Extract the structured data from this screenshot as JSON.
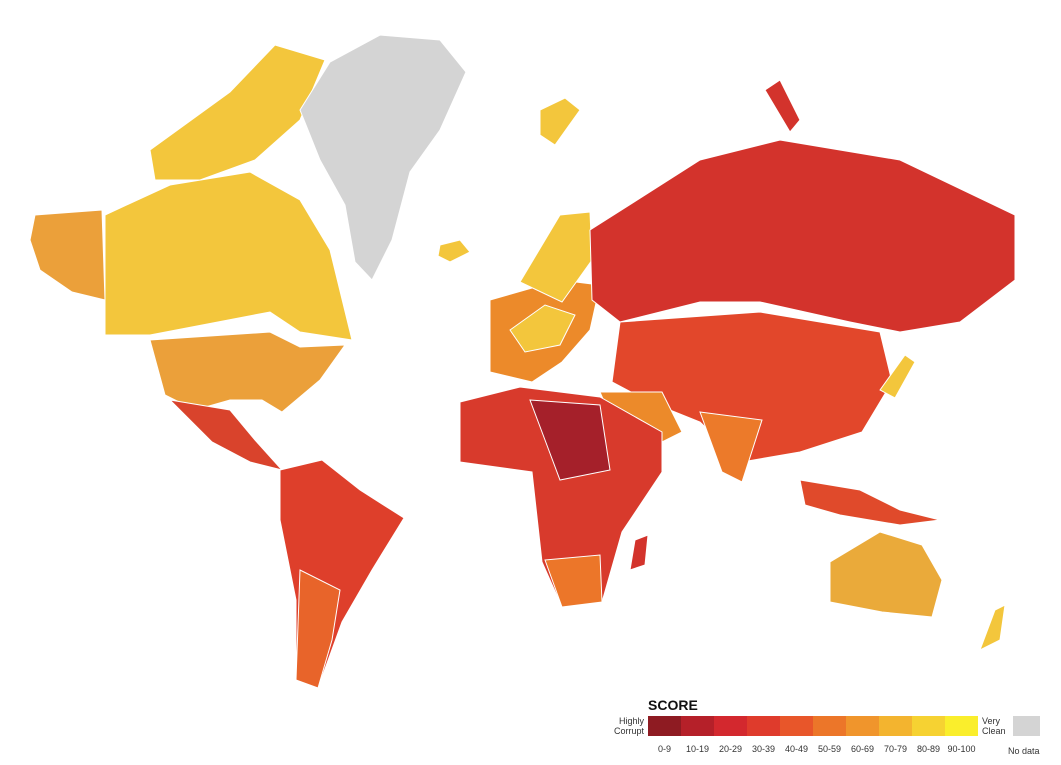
{
  "legend": {
    "title": "SCORE",
    "low_label": "Highly Corrupt",
    "high_label": "Very Clean",
    "no_data_label": "No data",
    "no_data_color": "#d4d4d4",
    "bins": [
      {
        "label": "0-9",
        "color": "#8e1b22"
      },
      {
        "label": "10-19",
        "color": "#b52029"
      },
      {
        "label": "20-29",
        "color": "#d3282e"
      },
      {
        "label": "30-39",
        "color": "#df3b2c"
      },
      {
        "label": "40-49",
        "color": "#e8562a"
      },
      {
        "label": "50-59",
        "color": "#ec7629"
      },
      {
        "label": "60-69",
        "color": "#f0952c"
      },
      {
        "label": "70-79",
        "color": "#f3b42f"
      },
      {
        "label": "80-89",
        "color": "#f6d232"
      },
      {
        "label": "90-100",
        "color": "#faee2c"
      }
    ]
  }
}
